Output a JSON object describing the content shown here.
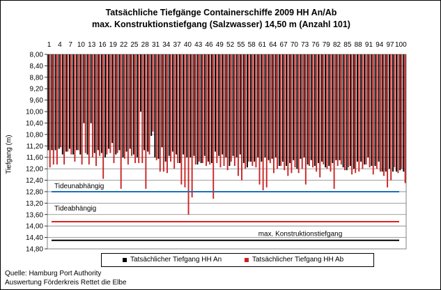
{
  "chart_data": {
    "type": "bar",
    "title": "Tatsächliche Tiefgänge Containerschiffe  2009 HH An/Ab",
    "subtitle": "max. Konstruktionstiefgang  (Salzwasser)  14,50 m (Anzahl 101)",
    "ylabel": "Tiefgang (m)",
    "xlabel": "",
    "ylim": [
      8.0,
      14.8
    ],
    "y_inverted": true,
    "y_ticks": [
      "8,00",
      "8,40",
      "8,80",
      "9,20",
      "9,60",
      "10,00",
      "10,40",
      "10,80",
      "11,20",
      "11,60",
      "12,00",
      "12,40",
      "12,80",
      "13,20",
      "13,60",
      "14,00",
      "14,40",
      "14,80"
    ],
    "x_tick_labels": [
      "1",
      "4",
      "7",
      "10",
      "13",
      "16",
      "19",
      "22",
      "25",
      "28",
      "31",
      "34",
      "37",
      "40",
      "43",
      "46",
      "49",
      "52",
      "55",
      "58",
      "61",
      "64",
      "67",
      "70",
      "73",
      "76",
      "79",
      "82",
      "85",
      "88",
      "91",
      "94",
      "97",
      "100"
    ],
    "x_axis_position": "top",
    "grid": true,
    "legend_position": "bottom",
    "series": [
      {
        "name": "Tatsächlicher Tiefgang HH An",
        "color": "#000000",
        "values": [
          11.35,
          11.35,
          11.35,
          11.3,
          11.5,
          11.4,
          11.3,
          11.5,
          11.35,
          11.5,
          10.4,
          11.5,
          10.4,
          11.45,
          11.35,
          11.45,
          11.6,
          11.3,
          11.1,
          11.5,
          11.35,
          11.6,
          11.4,
          11.3,
          11.5,
          11.6,
          10.0,
          11.35,
          11.4,
          10.85,
          11.6,
          11.65,
          11.25,
          11.75,
          11.55,
          11.4,
          11.5,
          11.8,
          11.5,
          11.6,
          11.6,
          11.55,
          11.85,
          11.8,
          11.55,
          11.75,
          11.8,
          11.4,
          11.55,
          11.5,
          11.6,
          11.9,
          11.55,
          11.6,
          11.5,
          11.8,
          11.95,
          11.75,
          11.75,
          11.6,
          11.75,
          11.6,
          11.7,
          11.65,
          11.6,
          11.9,
          11.75,
          11.9,
          11.8,
          11.7,
          12.0,
          11.65,
          11.6,
          11.85,
          11.7,
          11.9,
          11.8,
          11.75,
          11.95,
          11.9,
          11.8,
          11.7,
          11.7,
          11.95,
          12.05,
          11.9,
          12.0,
          11.75,
          11.75,
          11.85,
          11.6,
          11.9,
          11.9,
          11.75,
          12.1,
          12.1,
          12.0,
          12.1,
          12.1,
          12.05,
          12.1
        ]
      },
      {
        "name": "Tatsächlicher Tiefgang HH Ab",
        "color": "#cc2222",
        "values": [
          11.95,
          11.85,
          11.85,
          11.25,
          11.85,
          11.4,
          11.5,
          11.75,
          11.35,
          11.85,
          11.45,
          11.85,
          11.6,
          11.9,
          11.55,
          12.35,
          11.5,
          11.45,
          11.8,
          11.45,
          12.7,
          11.65,
          11.85,
          11.55,
          11.8,
          11.8,
          11.8,
          12.7,
          11.5,
          10.7,
          11.7,
          12.1,
          12.1,
          12.15,
          11.75,
          12.0,
          11.8,
          12.55,
          12.65,
          13.6,
          13.0,
          11.85,
          11.75,
          11.8,
          11.9,
          11.85,
          13.05,
          11.8,
          11.95,
          11.9,
          12.05,
          11.75,
          11.9,
          12.25,
          12.4,
          12.0,
          11.75,
          11.9,
          11.95,
          12.55,
          12.75,
          12.65,
          11.8,
          12.15,
          12.0,
          11.9,
          12.05,
          12.25,
          12.15,
          11.95,
          12.15,
          12.0,
          12.55,
          11.9,
          11.95,
          12.1,
          12.3,
          11.85,
          12.0,
          12.1,
          12.7,
          11.9,
          11.85,
          12.05,
          11.95,
          12.2,
          12.15,
          12.1,
          12.0,
          11.85,
          11.95,
          12.2,
          12.0,
          12.1,
          12.25,
          12.65,
          12.4,
          11.95,
          12.15,
          12.0,
          12.5
        ]
      }
    ],
    "reference_lines": [
      {
        "label": "Tideunabhängig",
        "value": 12.8,
        "color": "#1f6fb5"
      },
      {
        "label": "Tideabhängig",
        "value": 13.85,
        "color": "#e02020"
      },
      {
        "label": "max. Konstruktionstiefgang",
        "value": 14.5,
        "color": "#000000"
      }
    ]
  },
  "footer": {
    "source": "Quelle: Hamburg Port Authority",
    "author": "Auswertung Förderkreis Rettet die Elbe"
  }
}
